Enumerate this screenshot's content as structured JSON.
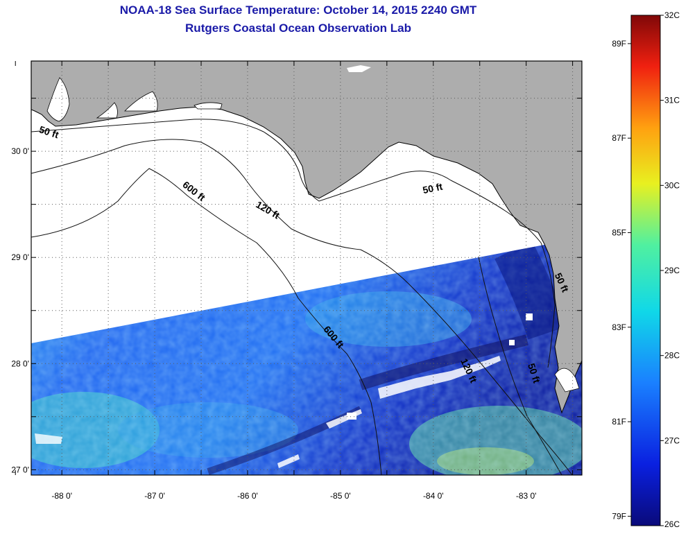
{
  "header": {
    "title_line1": "NOAA-18 Sea Surface Temperature:  October 14, 2015 2240 GMT",
    "title_line2": "Rutgers Coastal Ocean Observation Lab"
  },
  "map": {
    "lon_ticks": [
      {
        "value": -88,
        "label": "-88 0'"
      },
      {
        "value": -87,
        "label": "-87 0'"
      },
      {
        "value": -86,
        "label": "-86 0'"
      },
      {
        "value": -85,
        "label": "-85 0'"
      },
      {
        "value": -84,
        "label": "-84 0'"
      },
      {
        "value": -83,
        "label": "-83 0'"
      }
    ],
    "lat_ticks": [
      {
        "value": 30,
        "label": "30 0'"
      },
      {
        "value": 29,
        "label": "29 0'"
      },
      {
        "value": 28,
        "label": "28 0'"
      },
      {
        "value": 27,
        "label": "27 0'"
      }
    ],
    "lon_range": [
      -88.33,
      -82.4
    ],
    "lat_range": [
      26.95,
      30.85
    ],
    "contour_labels": [
      {
        "text": "50 ft",
        "lon": -88.15,
        "lat": 30.15,
        "angle": 18
      },
      {
        "text": "600 ft",
        "lon": -86.6,
        "lat": 29.6,
        "angle": 38
      },
      {
        "text": "120 ft",
        "lon": -85.8,
        "lat": 29.42,
        "angle": 30
      },
      {
        "text": "50 ft",
        "lon": -84.0,
        "lat": 29.62,
        "angle": -12
      },
      {
        "text": "600 ft",
        "lon": -85.1,
        "lat": 28.23,
        "angle": 50
      },
      {
        "text": "120 ft",
        "lon": -83.65,
        "lat": 27.92,
        "angle": 65
      },
      {
        "text": "50 ft",
        "lon": -82.95,
        "lat": 27.9,
        "angle": 72
      },
      {
        "text": "50 ft",
        "lon": -82.65,
        "lat": 28.75,
        "angle": 65
      }
    ],
    "colors": {
      "land": "#adadad",
      "grid": "#5a5a5a",
      "contour": "#111111"
    }
  },
  "colorbar": {
    "celsius_labels": [
      {
        "value": 32,
        "label": "32C"
      },
      {
        "value": 31,
        "label": "31C"
      },
      {
        "value": 30,
        "label": "30C"
      },
      {
        "value": 29,
        "label": "29C"
      },
      {
        "value": 28,
        "label": "28C"
      },
      {
        "value": 27,
        "label": "27C"
      },
      {
        "value": 26,
        "label": "26C"
      }
    ],
    "fahrenheit_labels": [
      {
        "value": 89,
        "label": "89F"
      },
      {
        "value": 87,
        "label": "87F"
      },
      {
        "value": 85,
        "label": "85F"
      },
      {
        "value": 83,
        "label": "83F"
      },
      {
        "value": 81,
        "label": "81F"
      },
      {
        "value": 79,
        "label": "79F"
      }
    ],
    "range_c": [
      26,
      32
    ]
  }
}
